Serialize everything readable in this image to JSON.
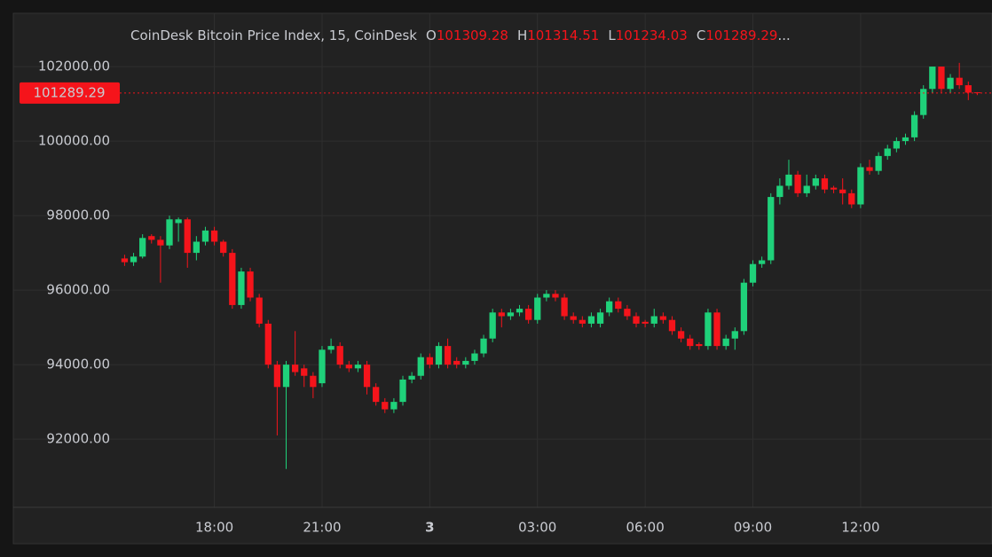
{
  "chart_data": {
    "type": "candlestick",
    "legend": {
      "title": "CoinDesk Bitcoin Price Index, 15, CoinDesk",
      "ohlc": [
        {
          "label": "O",
          "value": 101309.28
        },
        {
          "label": "H",
          "value": 101314.51
        },
        {
          "label": "L",
          "value": 101234.03
        },
        {
          "label": "C",
          "value": 101289.29
        }
      ],
      "ellipsis": "..."
    },
    "up_color": "#1fd17a",
    "down_color": "#f5141b",
    "last_price": 101289.29,
    "xlim": [
      12.4,
      39.66
    ],
    "xticks": [
      {
        "value": 18,
        "label": "18:00"
      },
      {
        "value": 21,
        "label": "21:00"
      },
      {
        "value": 24,
        "label": "3"
      },
      {
        "value": 27,
        "label": "03:00"
      },
      {
        "value": 30,
        "label": "06:00"
      },
      {
        "value": 33,
        "label": "09:00"
      },
      {
        "value": 36,
        "label": "12:00"
      }
    ],
    "ylim": [
      90170,
      103430
    ],
    "yticks": [
      {
        "value": 92000,
        "label": "92000.00"
      },
      {
        "value": 94000,
        "label": "94000.00"
      },
      {
        "value": 96000,
        "label": "96000.00"
      },
      {
        "value": 98000,
        "label": "98000.00"
      },
      {
        "value": 100000,
        "label": "100000.00"
      },
      {
        "value": 102000,
        "label": "102000.00"
      }
    ],
    "grid": true,
    "x": [
      15.5,
      15.75,
      16,
      16.25,
      16.5,
      16.75,
      17,
      17.25,
      17.5,
      17.75,
      18,
      18.25,
      18.5,
      18.75,
      19,
      19.25,
      19.5,
      19.75,
      20,
      20.25,
      20.5,
      20.75,
      21,
      21.25,
      21.5,
      21.75,
      22,
      22.25,
      22.5,
      22.75,
      23,
      23.25,
      23.5,
      23.75,
      24,
      24.25,
      24.5,
      24.75,
      25,
      25.25,
      25.5,
      25.75,
      26,
      26.25,
      26.5,
      26.75,
      27,
      27.25,
      27.5,
      27.75,
      28,
      28.25,
      28.5,
      28.75,
      29,
      29.25,
      29.5,
      29.75,
      30,
      30.25,
      30.5,
      30.75,
      31,
      31.25,
      31.5,
      31.75,
      32,
      32.25,
      32.5,
      32.75,
      33,
      33.25,
      33.5,
      33.75,
      34,
      34.25,
      34.5,
      34.75,
      35,
      35.25,
      35.5,
      35.75,
      36,
      36.25,
      36.5,
      36.75,
      37,
      37.25,
      37.5,
      37.75,
      38,
      38.25,
      38.5,
      38.75,
      39,
      39.25
    ],
    "open": [
      96850,
      96750,
      96900,
      97450,
      97350,
      97200,
      97800,
      97900,
      97000,
      97300,
      97600,
      97300,
      97000,
      95600,
      96500,
      95800,
      95100,
      94000,
      93400,
      94000,
      93900,
      93700,
      93500,
      94400,
      94500,
      94000,
      93900,
      94000,
      93400,
      93000,
      92800,
      93000,
      93600,
      93700,
      94200,
      94000,
      94500,
      94100,
      94000,
      94100,
      94300,
      94700,
      95400,
      95300,
      95400,
      95500,
      95200,
      95800,
      95900,
      95800,
      95300,
      95200,
      95100,
      95100,
      95400,
      95700,
      95500,
      95300,
      95150,
      95100,
      95300,
      95200,
      94900,
      94700,
      94550,
      94500,
      95400,
      94500,
      94700,
      94900,
      96200,
      96700,
      96800,
      98500,
      98800,
      99100,
      98600,
      98800,
      99000,
      98750,
      98700,
      98600,
      98300,
      99300,
      99200,
      99600,
      99800,
      100000,
      100100,
      100700,
      101400,
      102000,
      101400,
      101700,
      101500,
      101309.28
    ],
    "high": [
      96950,
      97000,
      97500,
      97500,
      97450,
      98000,
      97950,
      97950,
      97450,
      97700,
      97700,
      97350,
      97100,
      96600,
      96600,
      95900,
      95200,
      94100,
      94100,
      94900,
      94000,
      93800,
      94500,
      94700,
      94600,
      94100,
      94100,
      94100,
      93500,
      93100,
      93100,
      93700,
      93800,
      94300,
      94300,
      94600,
      94700,
      94200,
      94200,
      94400,
      94800,
      95500,
      95500,
      95500,
      95600,
      95600,
      95900,
      96000,
      96000,
      95900,
      95400,
      95300,
      95400,
      95500,
      95800,
      95800,
      95600,
      95400,
      95200,
      95500,
      95400,
      95300,
      95000,
      94800,
      94600,
      95500,
      95500,
      94800,
      95000,
      96300,
      96800,
      96900,
      98600,
      99000,
      99500,
      99200,
      99100,
      99100,
      99100,
      98800,
      99000,
      98700,
      99400,
      99500,
      99700,
      99900,
      100100,
      100200,
      100800,
      101500,
      102000,
      102000,
      101800,
      102100,
      101600,
      101314.51
    ],
    "low": [
      96650,
      96650,
      96850,
      97250,
      96200,
      97100,
      97300,
      96600,
      96800,
      97200,
      97200,
      96900,
      95500,
      95500,
      95700,
      95000,
      93900,
      92100,
      91200,
      93700,
      93400,
      93100,
      93400,
      94300,
      93900,
      93800,
      93800,
      93200,
      92900,
      92700,
      92700,
      92900,
      93500,
      93600,
      93900,
      93900,
      93900,
      93900,
      93900,
      94000,
      94200,
      94600,
      95000,
      95200,
      95300,
      95100,
      95100,
      95700,
      95700,
      95200,
      95100,
      95000,
      95000,
      95000,
      95300,
      95400,
      95200,
      95000,
      95000,
      95000,
      95100,
      94800,
      94600,
      94400,
      94400,
      94400,
      94400,
      94400,
      94400,
      94800,
      96100,
      96600,
      96700,
      98300,
      98700,
      98500,
      98500,
      98700,
      98600,
      98600,
      98300,
      98200,
      98200,
      99100,
      99100,
      99500,
      99700,
      99900,
      100000,
      100600,
      101300,
      101300,
      101300,
      101400,
      101100,
      101234.03
    ],
    "close": [
      96750,
      96900,
      97400,
      97350,
      97200,
      97900,
      97900,
      97000,
      97300,
      97600,
      97300,
      97000,
      95600,
      96500,
      95800,
      95100,
      94000,
      93400,
      94000,
      93800,
      93700,
      93400,
      94400,
      94500,
      94000,
      93900,
      94000,
      93400,
      93000,
      92800,
      93000,
      93600,
      93700,
      94200,
      94000,
      94500,
      94000,
      94000,
      94100,
      94300,
      94700,
      95400,
      95300,
      95400,
      95500,
      95200,
      95800,
      95900,
      95800,
      95300,
      95200,
      95100,
      95300,
      95400,
      95700,
      95500,
      95300,
      95100,
      95100,
      95300,
      95200,
      94900,
      94700,
      94500,
      94500,
      95400,
      94500,
      94700,
      94900,
      96200,
      96700,
      96800,
      98500,
      98800,
      99100,
      98600,
      98800,
      99000,
      98700,
      98700,
      98600,
      98300,
      99300,
      99200,
      99600,
      99800,
      100000,
      100100,
      100700,
      101400,
      102000,
      101400,
      101700,
      101500,
      101300,
      101289.29
    ]
  }
}
